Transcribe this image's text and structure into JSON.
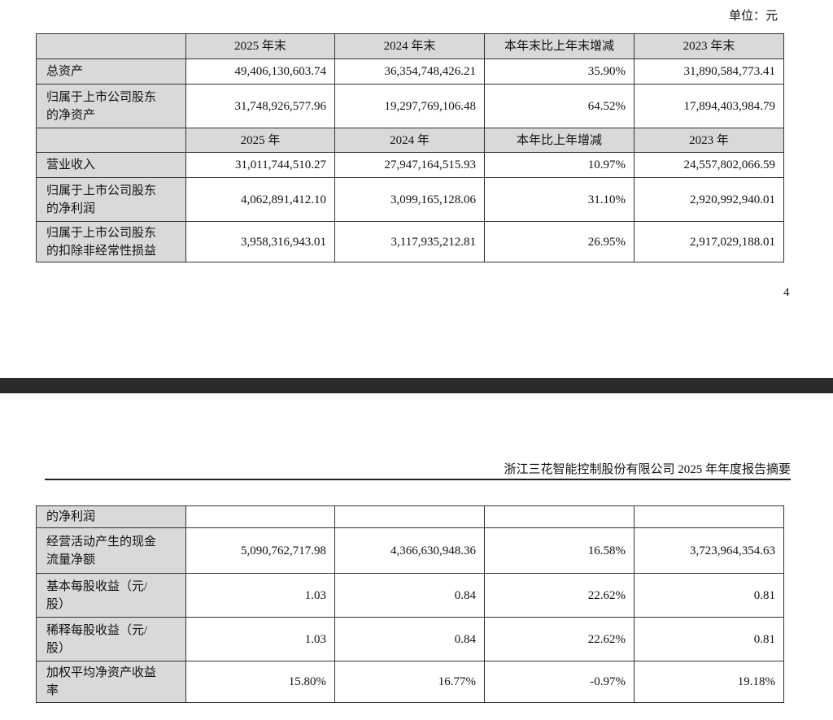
{
  "unit": "单位：元",
  "page_number": "4",
  "running_header": "浙江三花智能控制股份有限公司 2025 年年度报告摘要",
  "table1": {
    "rows": [
      {
        "headers": [
          "2025 年末",
          "2024 年末",
          "本年末比上年末增减",
          "2023 年末"
        ]
      },
      {
        "label": [
          "总资产"
        ],
        "cells": [
          "49,406,130,603.74",
          "36,354,748,426.21",
          "35.90%",
          "31,890,584,773.41"
        ]
      },
      {
        "label": [
          "归属于上市公司股东",
          "的净资产"
        ],
        "cells": [
          "31,748,926,577.96",
          "19,297,769,106.48",
          "64.52%",
          "17,894,403,984.79"
        ]
      },
      {
        "headers": [
          "2025 年",
          "2024 年",
          "本年比上年增减",
          "2023 年"
        ]
      },
      {
        "label": [
          "营业收入"
        ],
        "cells": [
          "31,011,744,510.27",
          "27,947,164,515.93",
          "10.97%",
          "24,557,802,066.59"
        ]
      },
      {
        "label": [
          "归属于上市公司股东",
          "的净利润"
        ],
        "cells": [
          "4,062,891,412.10",
          "3,099,165,128.06",
          "31.10%",
          "2,920,992,940.01"
        ]
      },
      {
        "label": [
          "归属于上市公司股东",
          "的扣除非经常性损益"
        ],
        "cells": [
          "3,958,316,943.01",
          "3,117,935,212.81",
          "26.95%",
          "2,917,029,188.01"
        ]
      }
    ]
  },
  "table2": {
    "rows": [
      {
        "label": [
          "的净利润"
        ]
      },
      {
        "label": [
          "经营活动产生的现金",
          "流量净额"
        ],
        "cells": [
          "5,090,762,717.98",
          "4,366,630,948.36",
          "16.58%",
          "3,723,964,354.63"
        ]
      },
      {
        "label": [
          "基本每股收益（元/",
          "股）"
        ],
        "cells": [
          "1.03",
          "0.84",
          "22.62%",
          "0.81"
        ]
      },
      {
        "label": [
          "稀释每股收益（元/",
          "股）"
        ],
        "cells": [
          "1.03",
          "0.84",
          "22.62%",
          "0.81"
        ]
      },
      {
        "label": [
          "加权平均净资产收益",
          "率"
        ],
        "cells": [
          "15.80%",
          "16.77%",
          "-0.97%",
          "19.18%"
        ]
      }
    ]
  }
}
